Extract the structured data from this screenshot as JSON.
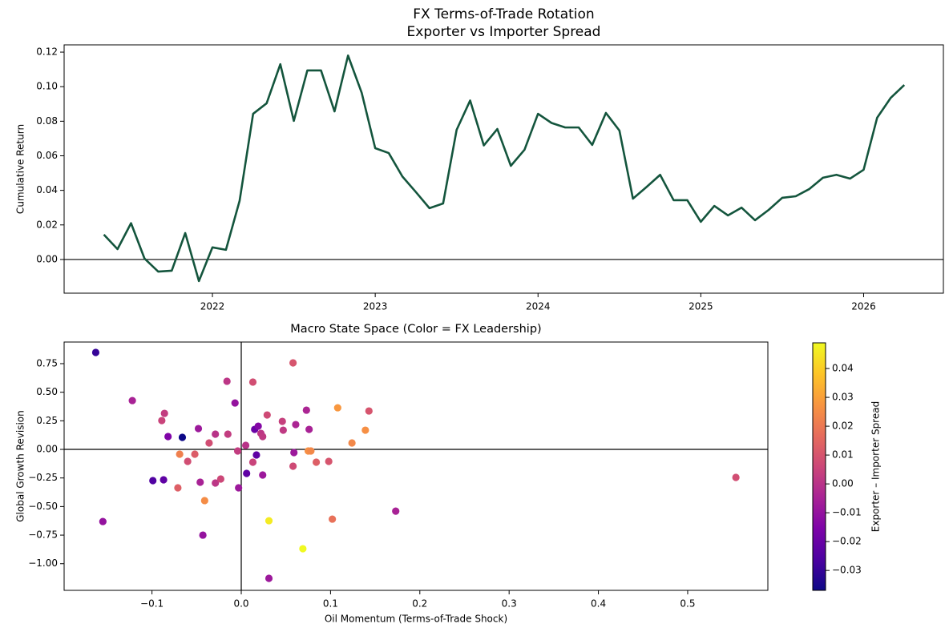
{
  "chart_data": [
    {
      "type": "line",
      "title": "FX Terms-of-Trade Rotation",
      "subtitle": "Exporter vs Importer Spread",
      "ylabel": "Cumulative Return",
      "color": "#14553d",
      "x": [
        2021.333,
        2021.417,
        2021.5,
        2021.583,
        2021.667,
        2021.75,
        2021.833,
        2021.917,
        2022,
        2022.083,
        2022.167,
        2022.25,
        2022.333,
        2022.417,
        2022.5,
        2022.583,
        2022.667,
        2022.75,
        2022.833,
        2022.917,
        2023,
        2023.083,
        2023.167,
        2023.25,
        2023.333,
        2023.417,
        2023.5,
        2023.583,
        2023.667,
        2023.75,
        2023.833,
        2023.917,
        2024,
        2024.083,
        2024.167,
        2024.25,
        2024.333,
        2024.417,
        2024.5,
        2024.583,
        2024.667,
        2024.75,
        2024.833,
        2024.917,
        2025,
        2025.083,
        2025.167,
        2025.25,
        2025.333,
        2025.417,
        2025.5,
        2025.583,
        2025.667,
        2025.75,
        2025.833,
        2025.917,
        2026,
        2026.083,
        2026.167,
        2026.25
      ],
      "values": [
        0.0144,
        0.006,
        0.021,
        0.0005,
        -0.007,
        -0.0065,
        0.0153,
        -0.0125,
        0.007,
        0.0056,
        0.034,
        0.0843,
        0.0904,
        0.113,
        0.0802,
        0.1094,
        0.1094,
        0.0857,
        0.118,
        0.0964,
        0.0644,
        0.0616,
        0.048,
        0.039,
        0.0297,
        0.0324,
        0.075,
        0.092,
        0.066,
        0.0755,
        0.0542,
        0.0635,
        0.0843,
        0.079,
        0.0764,
        0.0764,
        0.0663,
        0.0848,
        0.0746,
        0.0352,
        0.042,
        0.049,
        0.0343,
        0.0343,
        0.0218,
        0.031,
        0.0255,
        0.03,
        0.0227,
        0.0287,
        0.0357,
        0.0366,
        0.0408,
        0.0473,
        0.049,
        0.0468,
        0.0519,
        0.082,
        0.0936,
        0.101
      ],
      "xlim": [
        2021.089,
        2026.49
      ],
      "xticks": [
        2022,
        2023,
        2024,
        2025,
        2026
      ],
      "ylim": [
        -0.0195,
        0.1242
      ],
      "yticks": [
        {
          "value": 0,
          "label": "0.00"
        },
        {
          "value": 0.02,
          "label": "0.02"
        },
        {
          "value": 0.04,
          "label": "0.04"
        },
        {
          "value": 0.06,
          "label": "0.06"
        },
        {
          "value": 0.08,
          "label": "0.08"
        },
        {
          "value": 0.1,
          "label": "0.10"
        },
        {
          "value": 0.12,
          "label": "0.12"
        }
      ],
      "hline": 0
    },
    {
      "type": "scatter",
      "title": "Macro State Space (Color = FX Leadership)",
      "xlabel": "Oil Momentum (Terms-of-Trade Shock)",
      "ylabel": "Global Growth Revision",
      "colorbar_label": "Exporter – Importer Spread",
      "colormap": "plasma",
      "x": [
        -0.163,
        -0.122,
        -0.086,
        -0.089,
        -0.082,
        -0.066,
        -0.069,
        -0.052,
        -0.06,
        -0.048,
        -0.036,
        -0.099,
        -0.087,
        -0.071,
        -0.046,
        -0.041,
        -0.043,
        -0.155,
        -0.029,
        -0.015,
        -0.016,
        -0.007,
        -0.029,
        -0.023,
        -0.004,
        -0.003,
        0.005,
        0.006,
        0.013,
        0.015,
        0.019,
        0.017,
        0.013,
        0.022,
        0.024,
        0.024,
        0.029,
        0.031,
        0.031,
        0.058,
        0.046,
        0.047,
        0.061,
        0.059,
        0.058,
        0.073,
        0.076,
        0.075,
        0.078,
        0.084,
        0.098,
        0.069,
        0.102,
        0.108,
        0.124,
        0.139,
        0.143,
        0.173,
        0.554
      ],
      "values": [
        0.848,
        0.427,
        0.315,
        0.252,
        0.112,
        0.105,
        -0.042,
        -0.042,
        -0.105,
        0.182,
        0.056,
        -0.273,
        -0.266,
        -0.336,
        -0.287,
        -0.448,
        -0.75,
        -0.631,
        0.133,
        0.133,
        0.596,
        0.406,
        -0.294,
        -0.259,
        -0.014,
        -0.336,
        0.035,
        -0.21,
        0.589,
        0.175,
        0.203,
        -0.049,
        -0.112,
        0.14,
        0.112,
        -0.224,
        0.301,
        -0.624,
        -1.128,
        0.757,
        0.245,
        0.168,
        0.217,
        -0.028,
        -0.147,
        0.343,
        0.175,
        -0.014,
        -0.014,
        -0.112,
        -0.105,
        -0.869,
        -0.61,
        0.364,
        0.056,
        0.168,
        0.336,
        -0.54,
        -0.245
      ],
      "color_values": [
        -0.03,
        -0.005,
        0.003,
        0.005,
        -0.015,
        -0.037,
        0.022,
        0.012,
        0.008,
        -0.008,
        0.008,
        -0.025,
        -0.022,
        0.013,
        -0.005,
        0.025,
        -0.01,
        -0.01,
        0,
        0.003,
        0.001,
        -0.01,
        0.001,
        0.006,
        0.003,
        -0.008,
        0,
        -0.022,
        0.008,
        -0.02,
        -0.014,
        -0.022,
        0.005,
        0.001,
        0.002,
        -0.008,
        0.007,
        0.046,
        -0.008,
        0.01,
        0.004,
        0.002,
        -0.004,
        -0.008,
        0.007,
        -0.004,
        -0.005,
        0.026,
        0.024,
        0.013,
        0.01,
        0.049,
        0.018,
        0.028,
        0.024,
        0.026,
        0.01,
        -0.005,
        0.008
      ],
      "xlim": [
        -0.1984,
        0.5898
      ],
      "xticks": [
        {
          "value": -0.1,
          "label": "−0.1"
        },
        {
          "value": 0,
          "label": "0.0"
        },
        0.1,
        0.2,
        0.3,
        0.4,
        0.5
      ],
      "ylim": [
        -1.233,
        0.939
      ],
      "yticks": [
        {
          "value": -1,
          "label": "−1.00"
        },
        {
          "value": -0.75,
          "label": "−0.75"
        },
        {
          "value": -0.5,
          "label": "−0.50"
        },
        {
          "value": -0.25,
          "label": "−0.25"
        },
        {
          "value": 0,
          "label": "0.00"
        },
        0.25,
        {
          "value": 0.5,
          "label": "0.50"
        },
        0.75
      ],
      "clim": [
        -0.0369,
        0.0489
      ],
      "cticks": [
        {
          "value": -0.03,
          "label": "−0.03"
        },
        {
          "value": -0.02,
          "label": "−0.02"
        },
        {
          "value": -0.01,
          "label": "−0.01"
        },
        {
          "value": 0,
          "label": "0.00"
        },
        0.01,
        0.02,
        0.03,
        0.04
      ],
      "hline": 0,
      "vline": 0
    }
  ]
}
